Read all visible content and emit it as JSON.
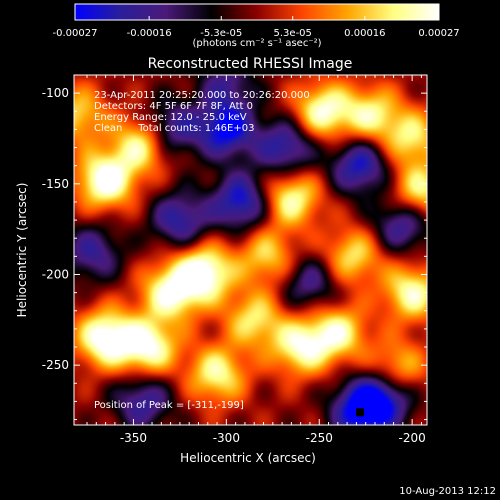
{
  "chart_data": {
    "type": "heatmap",
    "title": "Reconstructed RHESSI Image",
    "xlabel": "Heliocentric X (arcsec)",
    "ylabel": "Heliocentric Y (arcsec)",
    "xlim": [
      -382,
      -192
    ],
    "ylim": [
      -283,
      -90
    ],
    "x_ticks": [
      -350,
      -300,
      -250,
      -200
    ],
    "x_tick_labels": [
      "-350",
      "-300",
      "-250",
      "-200"
    ],
    "y_ticks": [
      -100,
      -150,
      -200,
      -250
    ],
    "y_tick_labels": [
      "-100",
      "-150",
      "-200",
      "-250"
    ],
    "colorbar": {
      "min": -0.00027,
      "max": 0.00027,
      "ticks": [
        -0.00027,
        -0.00016,
        -5.3e-05,
        5.3e-05,
        0.00016,
        0.00027
      ],
      "tick_labels": [
        "-0.00027",
        "-0.00016",
        "-5.3e-05",
        "5.3e-05",
        "0.00016",
        "0.00027"
      ],
      "unit_label": "(photons cm⁻² s⁻¹ asec⁻²)",
      "colormap": [
        "#0000ff",
        "#2a1e9a",
        "#4a1a7a",
        "#000000",
        "#8b0000",
        "#ff4500",
        "#ffa500",
        "#ffff80",
        "#ffffff"
      ]
    },
    "annotations": [
      "23-Apr-2011 20:25:20.000 to 20:26:20.000",
      "Detectors: 4F 5F 6F 7F 8F, Att 0",
      "Energy Range: 12.0 - 25.0 keV",
      "Clean     Total counts: 1.46E+03"
    ],
    "peak_label": "Position of Peak = [-311,-199]",
    "peak_position": [
      -311,
      -199
    ],
    "sources": [
      {
        "x": -365,
        "y": -148,
        "v": 1.0
      },
      {
        "x": -345,
        "y": -128,
        "v": 0.8
      },
      {
        "x": -380,
        "y": -112,
        "v": 0.6
      },
      {
        "x": -312,
        "y": -199,
        "v": 1.0
      },
      {
        "x": -330,
        "y": -210,
        "v": 0.85
      },
      {
        "x": -365,
        "y": -235,
        "v": 1.0
      },
      {
        "x": -342,
        "y": -240,
        "v": 0.9
      },
      {
        "x": -305,
        "y": -255,
        "v": 0.75
      },
      {
        "x": -285,
        "y": -225,
        "v": 0.65
      },
      {
        "x": -260,
        "y": -240,
        "v": 0.8
      },
      {
        "x": -240,
        "y": -232,
        "v": 0.75
      },
      {
        "x": -248,
        "y": -110,
        "v": 0.85
      },
      {
        "x": -222,
        "y": -112,
        "v": 0.7
      },
      {
        "x": -265,
        "y": -158,
        "v": 0.8
      },
      {
        "x": -232,
        "y": -190,
        "v": 0.65
      },
      {
        "x": -200,
        "y": -210,
        "v": 0.8
      },
      {
        "x": -196,
        "y": -155,
        "v": 0.75
      },
      {
        "x": -200,
        "y": -125,
        "v": 0.65
      },
      {
        "x": -278,
        "y": -190,
        "v": 0.6
      },
      {
        "x": -208,
        "y": -252,
        "v": 0.6
      },
      {
        "x": -330,
        "y": -120,
        "v": -0.7
      },
      {
        "x": -300,
        "y": -120,
        "v": -0.9
      },
      {
        "x": -292,
        "y": -160,
        "v": -0.85
      },
      {
        "x": -325,
        "y": -170,
        "v": -0.7
      },
      {
        "x": -268,
        "y": -130,
        "v": -0.75
      },
      {
        "x": -228,
        "y": -140,
        "v": -0.8
      },
      {
        "x": -205,
        "y": -172,
        "v": -0.7
      },
      {
        "x": -372,
        "y": -188,
        "v": -0.6
      },
      {
        "x": -345,
        "y": -270,
        "v": -0.65
      },
      {
        "x": -228,
        "y": -275,
        "v": -0.9
      },
      {
        "x": -215,
        "y": -268,
        "v": -0.8
      },
      {
        "x": -255,
        "y": -205,
        "v": -0.55
      },
      {
        "x": -300,
        "y": -95,
        "v": -0.5
      }
    ]
  },
  "footer": {
    "timestamp": "10-Aug-2013 12:12"
  }
}
